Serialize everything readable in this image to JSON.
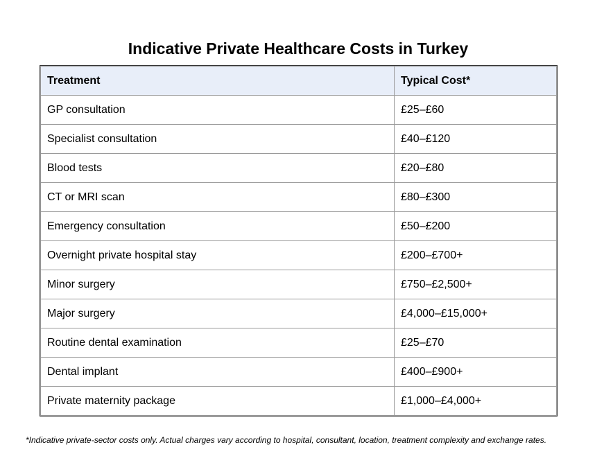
{
  "title": "Indicative Private Healthcare Costs in Turkey",
  "table": {
    "headers": [
      "Treatment",
      "Typical Cost*"
    ],
    "rows": [
      [
        "GP consultation",
        "£25–£60"
      ],
      [
        "Specialist consultation",
        "£40–£120"
      ],
      [
        "Blood tests",
        "£20–£80"
      ],
      [
        "CT or MRI scan",
        "£80–£300"
      ],
      [
        "Emergency consultation",
        "£50–£200"
      ],
      [
        "Overnight private hospital stay",
        "£200–£700+"
      ],
      [
        "Minor surgery",
        "£750–£2,500+"
      ],
      [
        "Major surgery",
        "£4,000–£15,000+"
      ],
      [
        "Routine dental examination",
        "£25–£70"
      ],
      [
        "Dental implant",
        "£400–£900+"
      ],
      [
        "Private maternity package",
        "£1,000–£4,000+"
      ]
    ]
  },
  "footnote": "*Indicative private-sector costs only. Actual charges vary according to hospital, consultant, location, treatment complexity and exchange rates.",
  "colors": {
    "header_background": "#e8eef9",
    "border": "#9a9a9a",
    "text": "#000000"
  }
}
